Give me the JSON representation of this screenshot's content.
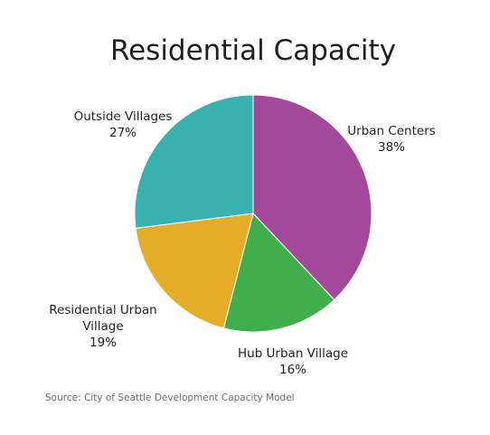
{
  "chart_data": {
    "type": "pie",
    "title": "Residential Capacity",
    "source": "Source: City of Seattle Development Capacity Model",
    "slices": [
      {
        "label": "Urban Centers",
        "value": 38,
        "value_label": "38%",
        "color": "#a4489b",
        "label_lines": [
          "Urban Centers"
        ]
      },
      {
        "label": "Hub Urban Village",
        "value": 16,
        "value_label": "16%",
        "color": "#40ae4b",
        "label_lines": [
          "Hub Urban Village"
        ]
      },
      {
        "label": "Residential Urban Village",
        "value": 19,
        "value_label": "19%",
        "color": "#e5ad27",
        "label_lines": [
          "Residential Urban",
          "Village"
        ]
      },
      {
        "label": "Outside Villages",
        "value": 27,
        "value_label": "27%",
        "color": "#38b1b0",
        "label_lines": [
          "Outside Villages"
        ]
      }
    ]
  }
}
